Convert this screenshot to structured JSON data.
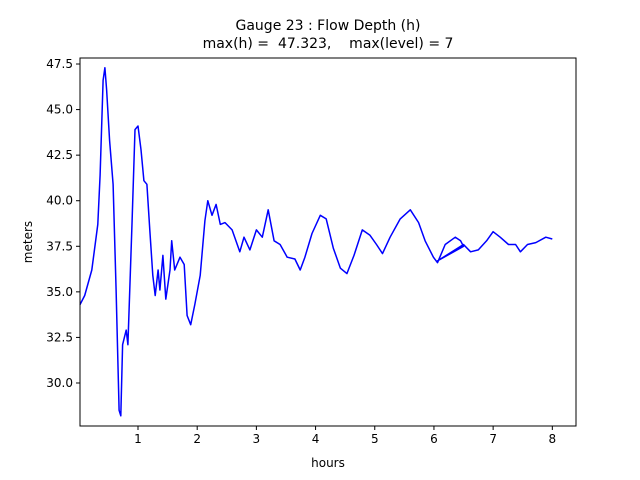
{
  "chart_data": {
    "type": "line",
    "title": "Gauge 23 : Flow Depth (h)",
    "subtitle": "max(h) =  47.323,    max(level) = 7",
    "xlabel": "hours",
    "ylabel": "meters",
    "xlim": [
      0.02,
      8.4
    ],
    "ylim": [
      27.64,
      47.83
    ],
    "xticks": [
      1,
      2,
      3,
      4,
      5,
      6,
      7,
      8
    ],
    "yticks": [
      {
        "value": 30,
        "label": "30.0"
      },
      32.5,
      {
        "value": 35,
        "label": "35.0"
      },
      37.5,
      {
        "value": 40,
        "label": "40.0"
      },
      42.5,
      {
        "value": 45,
        "label": "45.0"
      },
      47.5
    ],
    "x": [
      0.02,
      0.1,
      0.22,
      0.32,
      0.36,
      0.41,
      0.44,
      0.47,
      0.52,
      0.58,
      0.63,
      0.68,
      0.71,
      0.74,
      0.8,
      0.83,
      0.9,
      0.95,
      1.0,
      1.05,
      1.1,
      1.15,
      1.2,
      1.25,
      1.29,
      1.34,
      1.37,
      1.42,
      1.47,
      1.54,
      1.57,
      1.62,
      1.71,
      1.78,
      1.83,
      1.89,
      1.96,
      2.05,
      2.13,
      2.18,
      2.25,
      2.32,
      2.39,
      2.47,
      2.59,
      2.72,
      2.79,
      2.89,
      3.0,
      3.1,
      3.2,
      3.3,
      3.4,
      3.52,
      3.65,
      3.74,
      3.82,
      3.94,
      4.08,
      4.18,
      4.3,
      4.42,
      4.53,
      4.65,
      4.79,
      4.92,
      5.03,
      5.13,
      5.26,
      5.43,
      5.6,
      5.74,
      5.85,
      5.99,
      6.06,
      6.19,
      6.36,
      6.45,
      6.5,
      6.06,
      6.5,
      6.62,
      6.75,
      6.89,
      7.0,
      7.12,
      7.26,
      7.38,
      7.46,
      7.58,
      7.72,
      7.89,
      8.0
    ],
    "series": [
      {
        "name": "h",
        "color": "#0000ff",
        "values": [
          34.3,
          34.8,
          36.2,
          38.7,
          41.4,
          46.6,
          47.3,
          46.1,
          43.3,
          40.9,
          35.1,
          28.5,
          28.2,
          32.1,
          32.9,
          32.1,
          38.9,
          43.9,
          44.1,
          42.8,
          41.1,
          40.9,
          38.4,
          35.9,
          34.8,
          36.2,
          35.1,
          37.0,
          34.6,
          36.2,
          37.8,
          36.2,
          36.9,
          36.5,
          33.7,
          33.2,
          34.3,
          35.9,
          38.9,
          40.0,
          39.2,
          39.8,
          38.7,
          38.8,
          38.4,
          37.2,
          38.0,
          37.3,
          38.4,
          38.0,
          39.5,
          37.8,
          37.6,
          36.9,
          36.8,
          36.2,
          36.9,
          38.2,
          39.2,
          39.0,
          37.4,
          36.3,
          36.0,
          37.0,
          38.4,
          38.1,
          37.6,
          37.1,
          38.0,
          39.0,
          39.5,
          38.8,
          37.8,
          36.9,
          36.6,
          37.6,
          38.0,
          37.8,
          37.5,
          36.7,
          37.6,
          37.2,
          37.3,
          37.8,
          38.3,
          38.0,
          37.6,
          37.6,
          37.2,
          37.6,
          37.7,
          38.0,
          37.9
        ]
      }
    ]
  }
}
